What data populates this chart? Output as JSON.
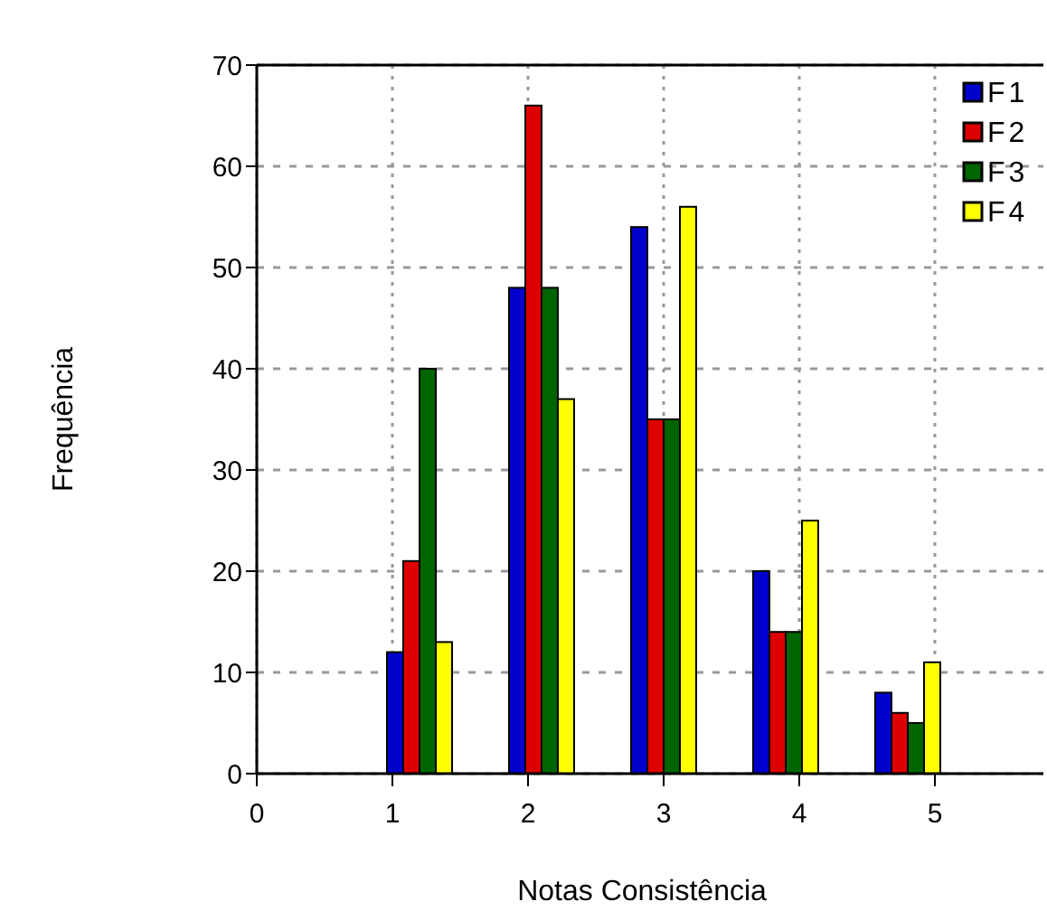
{
  "chart_data": {
    "type": "bar",
    "xlabel": "Notas Consistência",
    "ylabel": "Frequência",
    "x": [
      1.2,
      2.1,
      3.0,
      3.9,
      4.8
    ],
    "series": [
      {
        "name": "F1",
        "color": "#0000cc",
        "values": [
          12,
          48,
          54,
          20,
          8
        ]
      },
      {
        "name": "F2",
        "color": "#dd0000",
        "values": [
          21,
          66,
          35,
          14,
          6
        ]
      },
      {
        "name": "F3",
        "color": "#006400",
        "values": [
          40,
          48,
          35,
          14,
          5
        ]
      },
      {
        "name": "F4",
        "color": "#ffff00",
        "values": [
          13,
          37,
          56,
          25,
          11
        ]
      }
    ],
    "xlim": [
      0,
      5.8
    ],
    "xticks": [
      0,
      1,
      2,
      3,
      4,
      5
    ],
    "ylim": [
      0,
      70
    ],
    "yticks": [
      0,
      10,
      20,
      30,
      40,
      50,
      60,
      70
    ],
    "grid": true,
    "legend": "top right"
  }
}
